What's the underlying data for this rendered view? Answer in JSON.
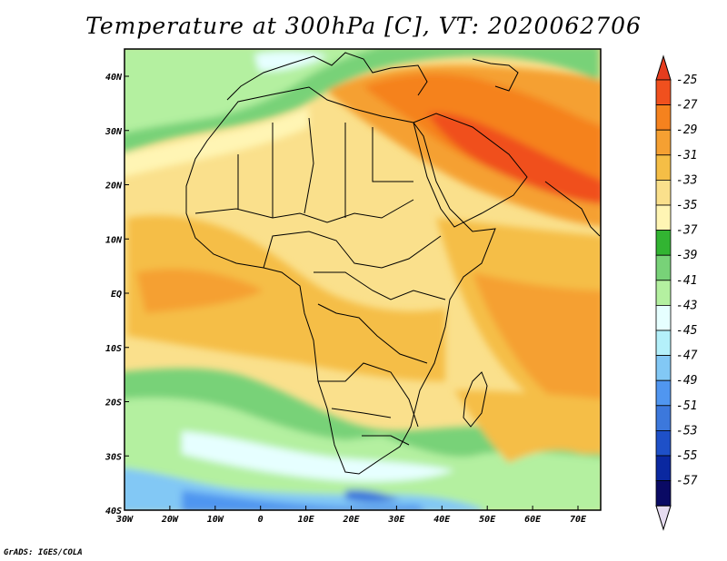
{
  "title": "Temperature at 300hPa [C], VT: 2020062706",
  "footer": "GrADS: IGES/COLA",
  "map": {
    "region": "Africa and Middle East",
    "lon_range": [
      -30,
      75
    ],
    "lat_range": [
      -40,
      45
    ],
    "lon_ticks": [
      "30W",
      "20W",
      "10W",
      "0",
      "10E",
      "20E",
      "30E",
      "40E",
      "50E",
      "60E",
      "70E"
    ],
    "lat_ticks": [
      "40N",
      "30N",
      "20N",
      "10N",
      "EQ",
      "10S",
      "20S",
      "30S",
      "40S"
    ]
  },
  "colorbar": {
    "labels": [
      "-25",
      "-27",
      "-29",
      "-31",
      "-33",
      "-35",
      "-37",
      "-39",
      "-41",
      "-43",
      "-45",
      "-47",
      "-49",
      "-51",
      "-53",
      "-55",
      "-57"
    ],
    "colors": [
      "#f0501e",
      "#f5821e",
      "#f5a032",
      "#f5be46",
      "#fae08c",
      "#fff5b4",
      "#32b432",
      "#78d278",
      "#b4f0a0",
      "#e6ffff",
      "#b4f0fa",
      "#82c8f5",
      "#5096f0",
      "#3c78dc",
      "#1e50c8",
      "#0a28a0",
      "#0a0a64"
    ],
    "top_arrow_color": "#e63c1e",
    "bottom_arrow_color": "#e6dcf0"
  }
}
